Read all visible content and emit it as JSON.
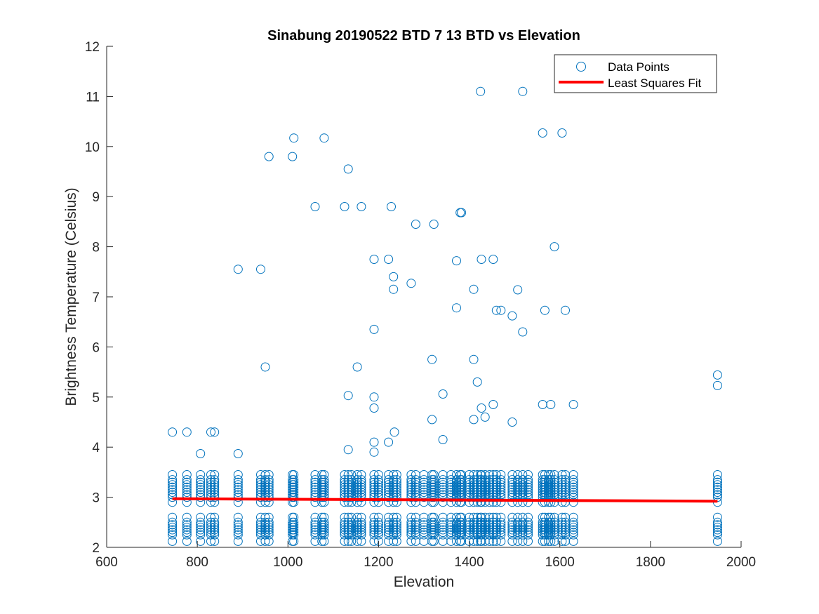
{
  "chart_data": {
    "type": "scatter",
    "title": "Sinabung 20190522 BTD 7 13 BTD vs Elevation",
    "xlabel": "Elevation",
    "ylabel": "Brightness Temperature (Celsius)",
    "xlim": [
      600,
      2000
    ],
    "ylim": [
      2,
      12
    ],
    "xticks": [
      600,
      800,
      1000,
      1200,
      1400,
      1600,
      1800,
      2000
    ],
    "yticks": [
      2,
      3,
      4,
      5,
      6,
      7,
      8,
      9,
      10,
      11,
      12
    ],
    "grid": false,
    "legend_position": "top-right",
    "colors": {
      "points": "#0072BD",
      "fit": "#FF0000",
      "axes": "#262626"
    },
    "series": [
      {
        "name": "Data Points",
        "kind": "scatter",
        "marker": "circle-open",
        "outliers": [
          [
            745,
            4.3
          ],
          [
            777,
            4.3
          ],
          [
            807,
            3.87
          ],
          [
            830,
            4.3
          ],
          [
            838,
            4.3
          ],
          [
            890,
            7.55
          ],
          [
            890,
            3.87
          ],
          [
            940,
            7.55
          ],
          [
            950,
            5.6
          ],
          [
            958,
            9.8
          ],
          [
            1010,
            9.8
          ],
          [
            1013,
            10.17
          ],
          [
            1060,
            8.8
          ],
          [
            1080,
            10.17
          ],
          [
            1125,
            8.8
          ],
          [
            1133,
            9.55
          ],
          [
            1133,
            5.03
          ],
          [
            1133,
            3.95
          ],
          [
            1153,
            5.6
          ],
          [
            1162,
            8.8
          ],
          [
            1190,
            7.75
          ],
          [
            1190,
            6.35
          ],
          [
            1190,
            5.0
          ],
          [
            1190,
            4.78
          ],
          [
            1190,
            4.1
          ],
          [
            1190,
            3.9
          ],
          [
            1222,
            7.75
          ],
          [
            1222,
            4.1
          ],
          [
            1228,
            8.8
          ],
          [
            1233,
            7.4
          ],
          [
            1233,
            7.15
          ],
          [
            1235,
            4.3
          ],
          [
            1272,
            7.27
          ],
          [
            1282,
            8.45
          ],
          [
            1318,
            5.75
          ],
          [
            1318,
            4.55
          ],
          [
            1322,
            8.45
          ],
          [
            1342,
            5.06
          ],
          [
            1342,
            4.15
          ],
          [
            1372,
            7.72
          ],
          [
            1372,
            6.78
          ],
          [
            1380,
            8.68
          ],
          [
            1383,
            8.68
          ],
          [
            1410,
            7.15
          ],
          [
            1410,
            5.75
          ],
          [
            1410,
            4.55
          ],
          [
            1418,
            5.3
          ],
          [
            1425,
            11.1
          ],
          [
            1427,
            7.75
          ],
          [
            1427,
            4.78
          ],
          [
            1435,
            4.6
          ],
          [
            1453,
            7.75
          ],
          [
            1453,
            4.85
          ],
          [
            1460,
            6.73
          ],
          [
            1470,
            6.73
          ],
          [
            1495,
            6.62
          ],
          [
            1495,
            4.5
          ],
          [
            1507,
            7.14
          ],
          [
            1518,
            6.3
          ],
          [
            1518,
            11.1
          ],
          [
            1562,
            10.27
          ],
          [
            1562,
            4.85
          ],
          [
            1567,
            6.73
          ],
          [
            1580,
            4.85
          ],
          [
            1588,
            8.0
          ],
          [
            1605,
            10.27
          ],
          [
            1612,
            6.73
          ],
          [
            1630,
            4.85
          ],
          [
            1948,
            5.44
          ],
          [
            1948,
            5.23
          ]
        ],
        "cluster_columns": [
          745,
          777,
          807,
          830,
          838,
          890,
          940,
          950,
          958,
          1010,
          1013,
          1060,
          1075,
          1080,
          1125,
          1133,
          1140,
          1153,
          1162,
          1190,
          1200,
          1222,
          1233,
          1240,
          1272,
          1282,
          1300,
          1318,
          1322,
          1342,
          1360,
          1372,
          1380,
          1383,
          1400,
          1410,
          1418,
          1425,
          1427,
          1435,
          1445,
          1453,
          1460,
          1470,
          1495,
          1507,
          1518,
          1530,
          1562,
          1567,
          1575,
          1580,
          1588,
          1605,
          1612,
          1630,
          1948
        ],
        "cluster_upper_values": [
          2.9,
          3.0,
          3.05,
          3.1,
          3.15,
          3.2,
          3.25,
          3.3,
          3.35,
          3.45
        ],
        "cluster_lower_values": [
          2.12,
          2.25,
          2.3,
          2.35,
          2.4,
          2.45,
          2.5,
          2.6
        ]
      },
      {
        "name": "Least Squares Fit",
        "kind": "line",
        "points": [
          [
            745,
            2.97
          ],
          [
            1948,
            2.92
          ]
        ]
      }
    ]
  }
}
